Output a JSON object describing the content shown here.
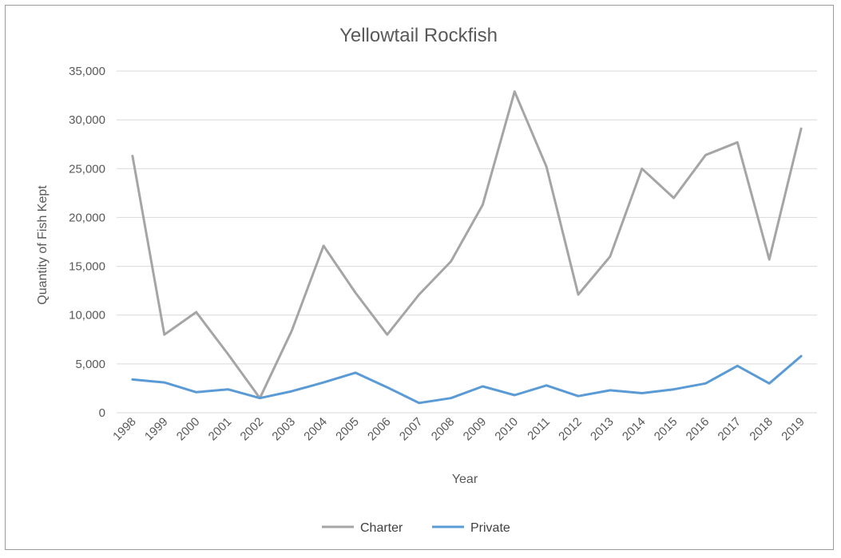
{
  "chart_data": {
    "type": "line",
    "title": "Yellowtail Rockfish",
    "xlabel": "Year",
    "ylabel": "Quantity of Fish Kept",
    "ylim": [
      0,
      35000
    ],
    "yticks": [
      0,
      5000,
      10000,
      15000,
      20000,
      25000,
      30000,
      35000
    ],
    "ytick_labels": [
      "0",
      "5,000",
      "10,000",
      "15,000",
      "20,000",
      "25,000",
      "30,000",
      "35,000"
    ],
    "grid": true,
    "legend_position": "bottom",
    "categories": [
      "1998",
      "1999",
      "2000",
      "2001",
      "2002",
      "2003",
      "2004",
      "2005",
      "2006",
      "2007",
      "2008",
      "2009",
      "2010",
      "2011",
      "2012",
      "2013",
      "2014",
      "2015",
      "2016",
      "2017",
      "2018",
      "2019"
    ],
    "series": [
      {
        "name": "Charter",
        "color": "#a5a5a5",
        "values": [
          26300,
          8000,
          10300,
          6000,
          1500,
          8400,
          17100,
          12300,
          8000,
          12100,
          15500,
          21300,
          32900,
          25200,
          12100,
          16000,
          25000,
          22000,
          26400,
          27700,
          15700,
          29100
        ]
      },
      {
        "name": "Private",
        "color": "#5b9bd5",
        "values": [
          3400,
          3100,
          2100,
          2400,
          1500,
          2200,
          3100,
          4100,
          2600,
          1000,
          1500,
          2700,
          1800,
          2800,
          1700,
          2300,
          2000,
          2400,
          3000,
          4800,
          3000,
          5800
        ]
      }
    ]
  }
}
